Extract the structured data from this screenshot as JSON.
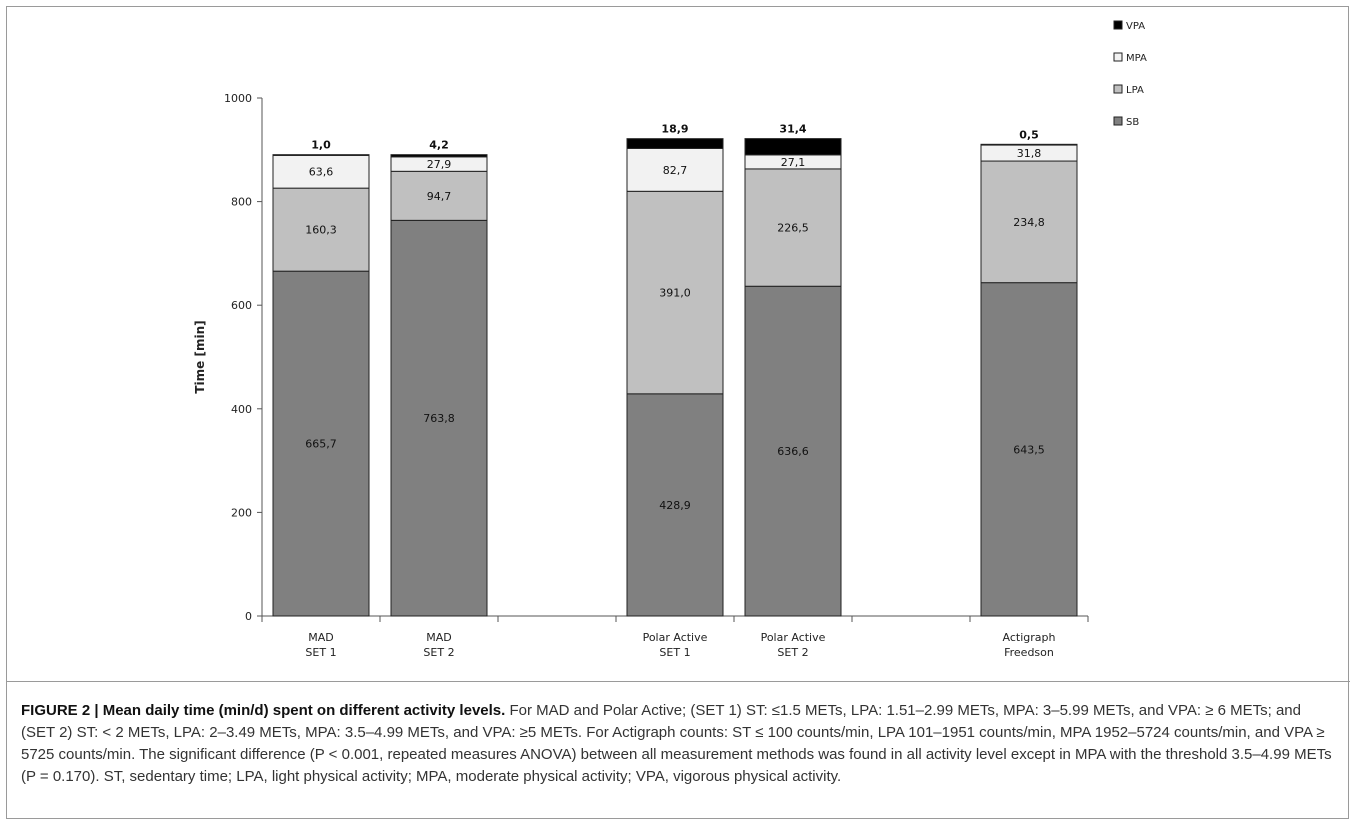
{
  "chart_data": {
    "type": "bar",
    "stacked": true,
    "ylabel": "Time [min]",
    "ylim": [
      0,
      1000
    ],
    "yticks": [
      "0",
      "200",
      "400",
      "600",
      "800",
      "1000"
    ],
    "grid": false,
    "legend_position": "top-right",
    "legend_order": [
      "VPA",
      "MPA",
      "LPA",
      "SB"
    ],
    "categories": [
      {
        "line1": "MAD",
        "line2": "SET 1"
      },
      {
        "line1": "MAD",
        "line2": "SET 2"
      },
      {
        "line1": "Polar Active",
        "line2": "SET 1"
      },
      {
        "line1": "Polar Active",
        "line2": "SET 2"
      },
      {
        "line1": "Actigraph",
        "line2": "Freedson"
      }
    ],
    "series": [
      {
        "name": "SB",
        "color": "#808080",
        "values": [
          665.7,
          763.8,
          428.9,
          636.6,
          643.5
        ],
        "labels": [
          "665,7",
          "763,8",
          "428,9",
          "636,6",
          "643,5"
        ]
      },
      {
        "name": "LPA",
        "color": "#c0c0c0",
        "values": [
          160.3,
          94.7,
          391.0,
          226.5,
          234.8
        ],
        "labels": [
          "160,3",
          "94,7",
          "391,0",
          "226,5",
          "234,8"
        ]
      },
      {
        "name": "MPA",
        "color": "#f2f2f2",
        "values": [
          63.6,
          27.9,
          82.7,
          27.1,
          31.8
        ],
        "labels": [
          "63,6",
          "27,9",
          "82,7",
          "27,1",
          "31,8"
        ]
      },
      {
        "name": "VPA",
        "color": "#000000",
        "values": [
          1.0,
          4.2,
          18.9,
          31.4,
          0.5
        ],
        "labels": [
          "1,0",
          "4,2",
          "18,9",
          "31,4",
          "0,5"
        ]
      }
    ]
  },
  "caption": {
    "lead": "FIGURE 2 | Mean daily time (min/d) spent on different activity levels.",
    "body": " For MAD and Polar Active; (SET 1) ST: ≤1.5 METs, LPA: 1.51–2.99 METs, MPA: 3–5.99 METs, and VPA: ≥ 6 METs; and (SET 2) ST: < 2 METs, LPA: 2–3.49 METs, MPA: 3.5–4.99 METs, and VPA: ≥5 METs. For Actigraph counts: ST ≤ 100 counts/min, LPA 101–1951 counts/min, MPA 1952–5724 counts/min, and VPA ≥ 5725 counts/min. The significant difference (P < 0.001, repeated measures ANOVA) between all measurement methods was found in all activity level except in MPA with the threshold 3.5–4.99 METs (P = 0.170). ST, sedentary time; LPA, light physical activity; MPA, moderate physical activity; VPA, vigorous physical activity."
  }
}
